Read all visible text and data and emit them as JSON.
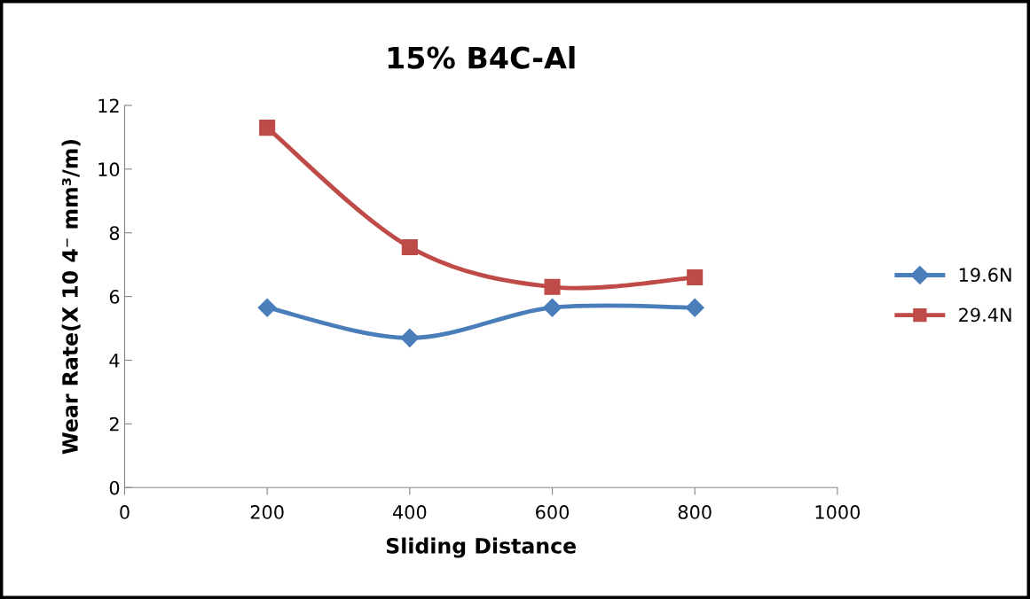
{
  "chart_data": {
    "type": "line",
    "title": "15% B4C-Al",
    "xlabel": "Sliding Distance",
    "ylabel": "Wear Rate(X 10 4⁻ mm³/m)",
    "x": [
      200,
      400,
      600,
      800
    ],
    "series": [
      {
        "name": "19.6N",
        "color": "#4a7ebb",
        "marker": "diamond",
        "values": [
          5.65,
          4.7,
          5.65,
          5.65
        ]
      },
      {
        "name": "29.4N",
        "color": "#be4b48",
        "marker": "square",
        "values": [
          11.3,
          7.55,
          6.3,
          6.6
        ]
      }
    ],
    "xlim": [
      0,
      1000
    ],
    "xticks": [
      0,
      200,
      400,
      600,
      800,
      1000
    ],
    "ylim": [
      0,
      12
    ],
    "yticks": [
      0,
      2,
      4,
      6,
      8,
      10,
      12
    ],
    "grid": false,
    "legend": "right",
    "line_style": "solid"
  }
}
